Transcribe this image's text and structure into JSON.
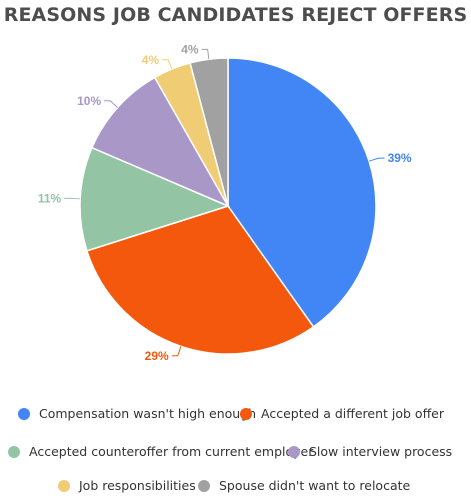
{
  "chart_data": {
    "type": "pie",
    "title": "REASONS JOB CANDIDATES REJECT OFFERS",
    "start_angle_deg": 0,
    "direction": "clockwise",
    "legend_position": "bottom",
    "slices": [
      {
        "label": "Compensation wasn't high enough",
        "value": 39,
        "value_label": "39%",
        "color": "#4285f4"
      },
      {
        "label": "Accepted a different job offer",
        "value": 29,
        "value_label": "29%",
        "color": "#f4580c"
      },
      {
        "label": "Accepted counteroffer from current employer",
        "value": 11,
        "value_label": "11%",
        "color": "#93c5a5"
      },
      {
        "label": "Slow interview process",
        "value": 10,
        "value_label": "10%",
        "color": "#a997c8"
      },
      {
        "label": "Job responsibilities",
        "value": 4,
        "value_label": "4%",
        "color": "#f0cd75"
      },
      {
        "label": "Spouse didn't want to relocate",
        "value": 4,
        "value_label": "4%",
        "color": "#a1a1a1"
      }
    ]
  }
}
